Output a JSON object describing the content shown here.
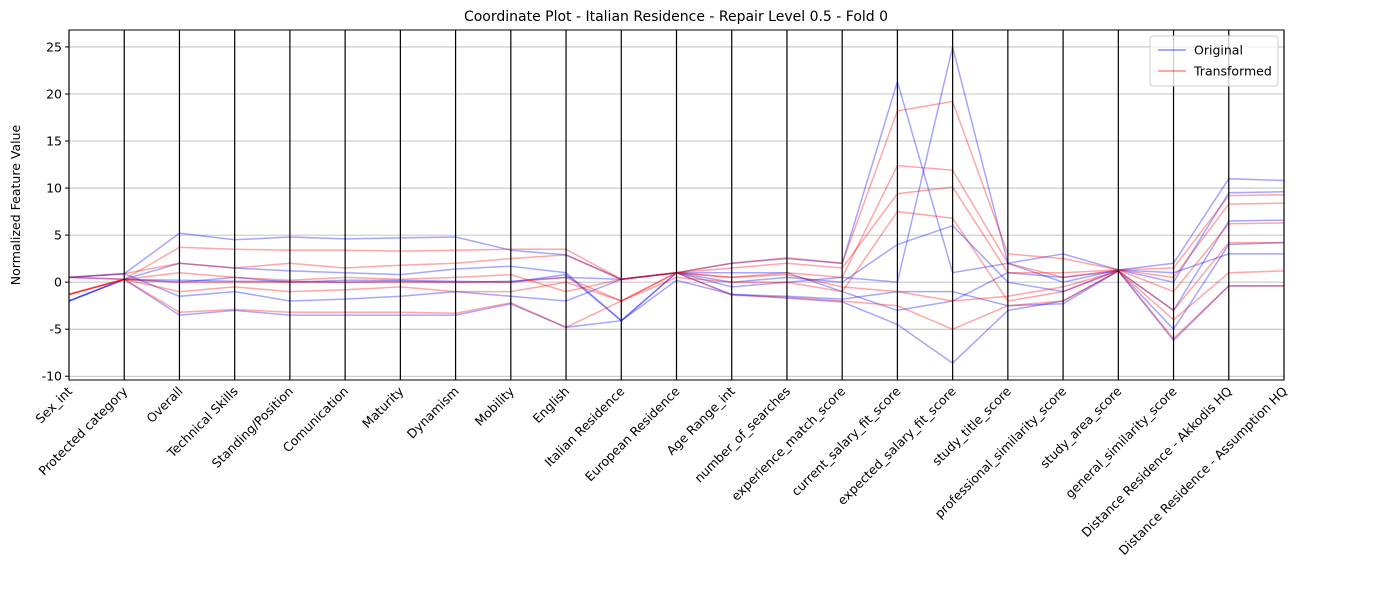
{
  "chart_data": {
    "type": "parallel",
    "title": "Coordinate Plot - Italian Residence - Repair Level 0.5 - Fold 0",
    "ylabel": "Normalized Feature Value",
    "categories": [
      "Sex_int",
      "Protected category",
      "Overall",
      "Technical Skills",
      "Standing/Position",
      "Comunication",
      "Maturity",
      "Dynamism",
      "Mobility",
      "English",
      "Italian Residence",
      "European Residence",
      "Age Range_int",
      "number_of_searches",
      "experience_match_score",
      "current_salary_fit_score",
      "expected_salary_fit_score",
      "study_title_score",
      "professional_similarity_score",
      "study_area_score",
      "general_similarity_score",
      "Distance Residence - Akkodis HQ",
      "Distance Residence - Assumption HQ"
    ],
    "ylim": [
      -10.4,
      26.8
    ],
    "yticks": [
      -10,
      -5,
      0,
      5,
      10,
      15,
      20,
      25
    ],
    "grid": true,
    "legend": "upper right",
    "series": [
      {
        "name": "Original",
        "color": "#0000ff",
        "lines": [
          [
            0.5,
            0.9,
            5.2,
            4.5,
            4.8,
            4.6,
            4.7,
            4.8,
            3.4,
            2.9,
            0.3,
            1,
            2,
            2.5,
            2,
            21.3,
            1,
            2,
            3,
            1.3,
            2,
            11,
            10.8
          ],
          [
            -2,
            0.3,
            -3.5,
            -3,
            -3.5,
            -3.5,
            -3.5,
            -3.5,
            -2.3,
            -4.8,
            -4.1,
            1,
            -1.3,
            -1.7,
            -2.1,
            -4.5,
            -8.6,
            -3,
            -2,
            1.2,
            -6.2,
            -0.4,
            -0.4
          ],
          [
            0.5,
            0.3,
            0.2,
            0.1,
            0.1,
            0,
            0.1,
            0,
            0.1,
            0.5,
            0.3,
            1,
            -0.5,
            0,
            0.5,
            0,
            25,
            2,
            0,
            1.3,
            0,
            9.5,
            9.6
          ],
          [
            -2,
            0.3,
            2,
            1.5,
            1.2,
            1,
            0.8,
            1.4,
            1.7,
            1,
            -4.1,
            1,
            1,
            1,
            -1,
            -3,
            -2,
            1,
            0.5,
            1.2,
            -3,
            6.5,
            6.6
          ],
          [
            0.5,
            0.9,
            -1.5,
            -1,
            -2,
            -1.8,
            -1.5,
            -1,
            -1.5,
            -2,
            0.3,
            1,
            0,
            0.5,
            0,
            4,
            6,
            0,
            -1,
            1.3,
            1,
            3,
            3
          ],
          [
            -2,
            0.3,
            0,
            0.5,
            0,
            0.2,
            0.2,
            0.1,
            0,
            0.8,
            -4.1,
            0.2,
            -1.3,
            -1.5,
            -1.8,
            -1,
            -1,
            -2.5,
            -2.3,
            1.2,
            -5,
            4,
            4.2
          ]
        ]
      },
      {
        "name": "Transformed",
        "color": "#ff0000",
        "lines": [
          [
            -1.3,
            0.3,
            3.7,
            3.5,
            3.4,
            3.4,
            3.3,
            3.4,
            3.5,
            3.5,
            0.3,
            1,
            2,
            2.6,
            2,
            18.2,
            19.2,
            3,
            2.5,
            1.3,
            1.5,
            9.2,
            9.3
          ],
          [
            -1.3,
            0.3,
            -3.2,
            -2.9,
            -3.2,
            -3.2,
            -3.2,
            -3.3,
            -2.2,
            -4.8,
            -2,
            1,
            -1.4,
            -1.6,
            -2,
            -2.5,
            -5,
            -2.5,
            -2,
            1.2,
            -6,
            -0.4,
            -0.4
          ],
          [
            0.5,
            0.3,
            1,
            0.5,
            0.2,
            0.5,
            0.3,
            0.5,
            0.8,
            -1,
            0.3,
            1,
            0.5,
            1,
            0.5,
            12.4,
            11.9,
            2,
            0.5,
            1.3,
            0.5,
            8.3,
            8.4
          ],
          [
            -1.3,
            0.3,
            -1,
            -0.5,
            -1,
            -0.8,
            -0.5,
            -1,
            -1,
            0,
            -2,
            0.5,
            0,
            0,
            -1,
            7.5,
            6.8,
            -2,
            -1,
            1.2,
            -3,
            4.2,
            4.2
          ],
          [
            0.5,
            0.9,
            2,
            1.5,
            2,
            1.5,
            1.8,
            2,
            2.5,
            2.9,
            0.3,
            1,
            1.5,
            2,
            1.5,
            9.4,
            10.1,
            1,
            1,
            1.3,
            -1,
            6.2,
            6.3
          ],
          [
            -1.3,
            0.3,
            0,
            0,
            0,
            0,
            0,
            0,
            0,
            0.5,
            -2,
            1,
            0.5,
            0.8,
            -0.5,
            -1,
            -2,
            -1.5,
            -0.5,
            1.2,
            -4,
            1,
            1.2
          ]
        ]
      }
    ]
  }
}
